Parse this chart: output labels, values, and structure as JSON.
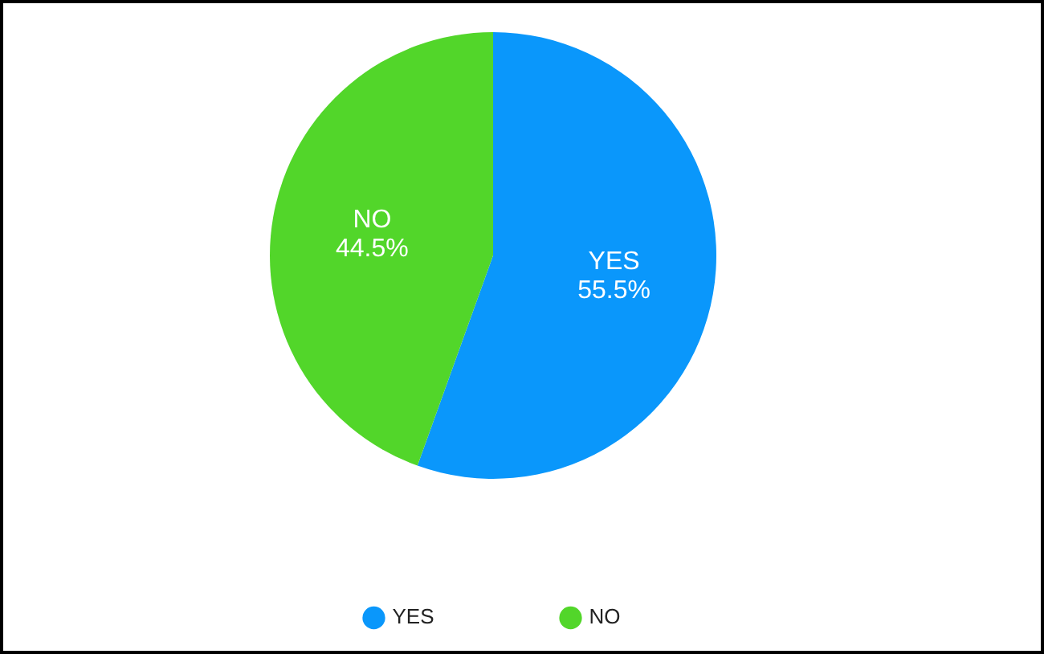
{
  "chart_data": {
    "type": "pie",
    "categories": [
      "YES",
      "NO"
    ],
    "values": [
      55.5,
      44.5
    ],
    "colors": [
      "#0a97fb",
      "#52d62a"
    ],
    "value_labels": [
      "55.5%",
      "44.5%"
    ],
    "legend": "bottom"
  }
}
